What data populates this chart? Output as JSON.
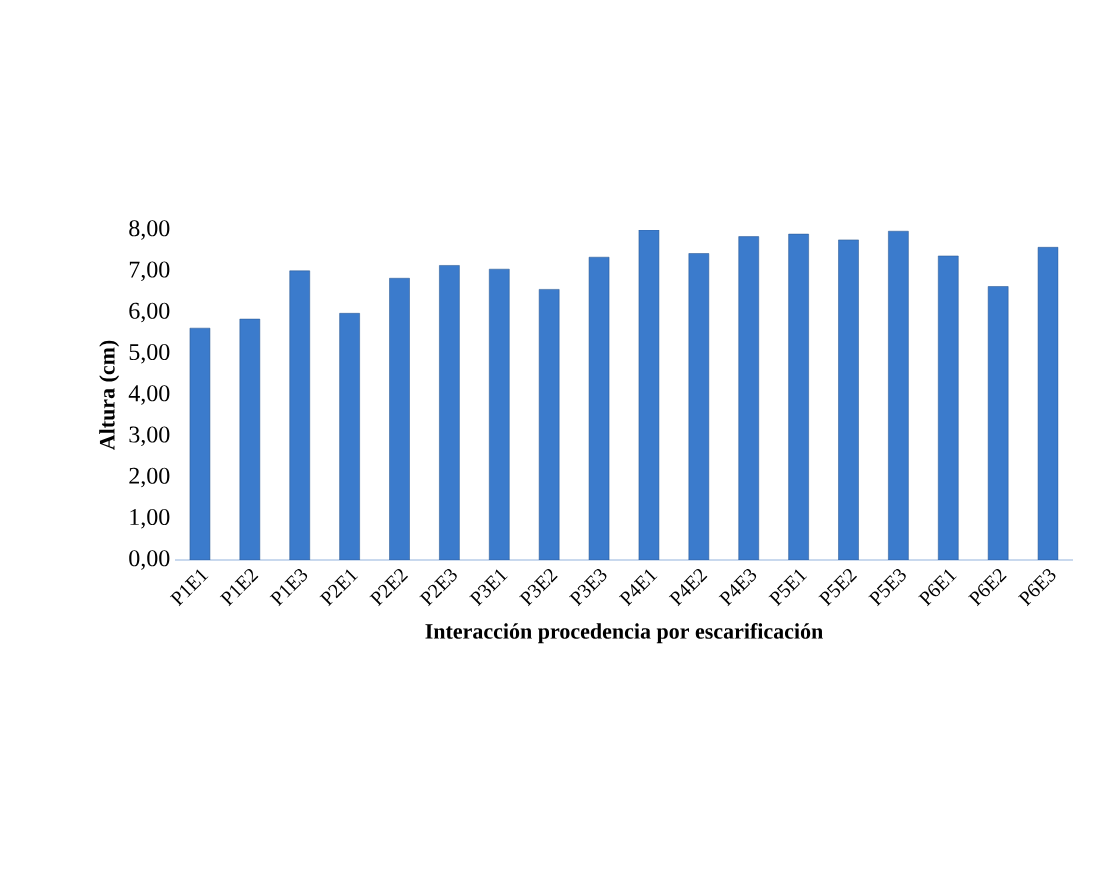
{
  "chart_data": {
    "type": "bar",
    "xlabel": "Interacción procedencia por escarificación",
    "ylabel": "Altura (cm)",
    "categories": [
      "P1E1",
      "P1E2",
      "P1E3",
      "P2E1",
      "P2E2",
      "P2E3",
      "P3E1",
      "P3E2",
      "P3E3",
      "P4E1",
      "P4E2",
      "P4E3",
      "P5E1",
      "P5E2",
      "P5E3",
      "P6E1",
      "P6E2",
      "P6E3"
    ],
    "values": [
      5.62,
      5.84,
      7.01,
      5.98,
      6.83,
      7.14,
      7.05,
      6.56,
      7.34,
      8.0,
      7.43,
      7.84,
      7.9,
      7.76,
      7.97,
      7.37,
      6.63,
      7.58
    ],
    "color": "#3b7bcc",
    "ylim": [
      0,
      8
    ],
    "yticks": [
      {
        "value": 0,
        "label": "0,00"
      },
      {
        "value": 1,
        "label": "1,00"
      },
      {
        "value": 2,
        "label": "2,00"
      },
      {
        "value": 3,
        "label": "3,00"
      },
      {
        "value": 4,
        "label": "4,00"
      },
      {
        "value": 5,
        "label": "5,00"
      },
      {
        "value": 6,
        "label": "6,00"
      },
      {
        "value": 7,
        "label": "7,00"
      },
      {
        "value": 8,
        "label": "8,00"
      }
    ]
  }
}
